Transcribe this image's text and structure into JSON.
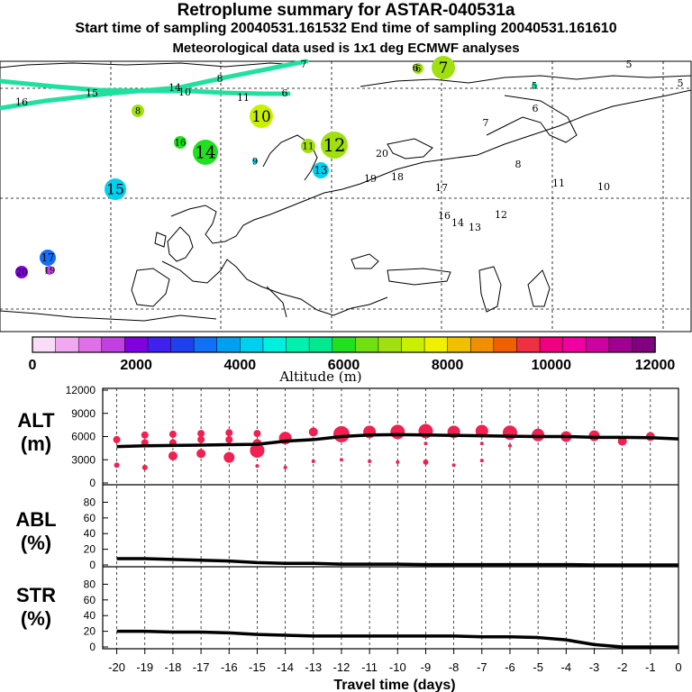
{
  "header": {
    "title": "Retroplume summary for ASTAR-040531a",
    "sampling_times": "Start time of sampling 20040531.161532     End time of sampling 20040531.161610",
    "met_data": "Meteorological data used is 1x1 deg ECMWF analyses"
  },
  "colors": {
    "altitude_scale": [
      "#f8dcf8",
      "#f0a8f0",
      "#e070e8",
      "#c040e0",
      "#8000e0",
      "#4020f0",
      "#2040f0",
      "#1070f8",
      "#00a0f0",
      "#00d0f0",
      "#00f0e0",
      "#00f0b0",
      "#00e890",
      "#20e020",
      "#70e010",
      "#a0e010",
      "#c8f000",
      "#f0f000",
      "#f0c000",
      "#f09000",
      "#f06000",
      "#f03040",
      "#f00080",
      "#f000a0",
      "#d000a0",
      "#a00090",
      "#800080"
    ],
    "track": "#20e0a0",
    "marker": "#f02050"
  },
  "map": {
    "colorbar_labels": [
      "0",
      "2000",
      "4000",
      "6000",
      "8000",
      "10000",
      "12000"
    ],
    "colorbar_title": "Altitude (m)",
    "plume_labels": [
      {
        "day": "16",
        "color": "#20e020"
      },
      {
        "day": "14",
        "color": "#20e020"
      },
      {
        "day": "15",
        "color": "#00d0f0"
      },
      {
        "day": "13",
        "color": "#00d0f0"
      },
      {
        "day": "12",
        "color": "#a0e010"
      },
      {
        "day": "11",
        "color": "#a0e010"
      },
      {
        "day": "10",
        "color": "#c8f000"
      },
      {
        "day": "9",
        "color": "#00d0f0"
      },
      {
        "day": "8",
        "color": "#a0e010"
      },
      {
        "day": "7",
        "color": "#a0e010"
      },
      {
        "day": "6",
        "color": "#a0e010"
      },
      {
        "day": "5",
        "color": "#00e890"
      },
      {
        "day": "17",
        "color": "#1070f8"
      },
      {
        "day": "20",
        "color": "#8000e0"
      },
      {
        "day": "19",
        "color": "#c040e0"
      }
    ]
  },
  "chart_data": [
    {
      "type": "line",
      "panel": "ALT",
      "ylabel": "ALT (m)",
      "ylim": [
        0,
        12000
      ],
      "yticks": [
        "0",
        "3000",
        "6000",
        "9000",
        "12000"
      ],
      "x": [
        -20,
        -19,
        -18,
        -17,
        -16,
        -15,
        -14,
        -13,
        -12,
        -11,
        -10,
        -9,
        -8,
        -7,
        -6,
        -5,
        -4,
        -3,
        -2,
        -1,
        0
      ],
      "values": [
        4700,
        4800,
        4850,
        4900,
        4950,
        5000,
        5400,
        5600,
        6000,
        6200,
        6250,
        6200,
        6150,
        6100,
        6050,
        6000,
        6000,
        5900,
        5900,
        5850,
        5700
      ],
      "clusters": [
        {
          "x": -20,
          "values": [
            5600,
            2300
          ],
          "sizes": [
            4,
            3
          ]
        },
        {
          "x": -19,
          "values": [
            6200,
            5200,
            2000
          ],
          "sizes": [
            4,
            4,
            3
          ]
        },
        {
          "x": -18,
          "values": [
            6300,
            5200,
            3500
          ],
          "sizes": [
            4,
            4,
            5
          ]
        },
        {
          "x": -17,
          "values": [
            6400,
            5600,
            3800
          ],
          "sizes": [
            4,
            4,
            5
          ]
        },
        {
          "x": -16,
          "values": [
            6500,
            5600,
            3300
          ],
          "sizes": [
            4,
            4,
            6
          ]
        },
        {
          "x": -15,
          "values": [
            6400,
            5100,
            4200,
            2200
          ],
          "sizes": [
            4,
            5,
            8,
            2
          ]
        },
        {
          "x": -14,
          "values": [
            5800,
            2000
          ],
          "sizes": [
            7,
            2
          ]
        },
        {
          "x": -13,
          "values": [
            6600,
            2800
          ],
          "sizes": [
            5,
            2
          ]
        },
        {
          "x": -12,
          "values": [
            6300,
            3000
          ],
          "sizes": [
            9,
            2
          ]
        },
        {
          "x": -11,
          "values": [
            6600,
            2800
          ],
          "sizes": [
            7,
            2
          ]
        },
        {
          "x": -10,
          "values": [
            6600,
            2700
          ],
          "sizes": [
            8,
            2
          ]
        },
        {
          "x": -9,
          "values": [
            6700,
            5100,
            2700
          ],
          "sizes": [
            8,
            2,
            3
          ]
        },
        {
          "x": -8,
          "values": [
            6600,
            2300
          ],
          "sizes": [
            7,
            2
          ]
        },
        {
          "x": -7,
          "values": [
            6700,
            5100,
            2900
          ],
          "sizes": [
            7,
            2,
            2
          ]
        },
        {
          "x": -6,
          "values": [
            6500,
            4800
          ],
          "sizes": [
            8,
            2
          ]
        },
        {
          "x": -5,
          "values": [
            6200
          ],
          "sizes": [
            7
          ]
        },
        {
          "x": -4,
          "values": [
            6000
          ],
          "sizes": [
            6
          ]
        },
        {
          "x": -3,
          "values": [
            6100
          ],
          "sizes": [
            6
          ]
        },
        {
          "x": -2,
          "values": [
            5400
          ],
          "sizes": [
            5
          ]
        },
        {
          "x": -1,
          "values": [
            6000
          ],
          "sizes": [
            5
          ]
        }
      ]
    },
    {
      "type": "line",
      "panel": "ABL",
      "ylabel": "ABL (%)",
      "ylim": [
        0,
        100
      ],
      "yticks": [
        "0",
        "20",
        "40",
        "60",
        "80"
      ],
      "x": [
        -20,
        -19,
        -18,
        -17,
        -16,
        -15,
        -14,
        -13,
        -12,
        -11,
        -10,
        -9,
        -8,
        -7,
        -6,
        -5,
        -4,
        -3,
        -2,
        -1,
        0
      ],
      "values": [
        8,
        8,
        7,
        6,
        5,
        3,
        2,
        2,
        1,
        1,
        1,
        0.5,
        0.5,
        0.5,
        0.5,
        0.5,
        0.5,
        0,
        0,
        0,
        0
      ]
    },
    {
      "type": "line",
      "panel": "STR",
      "ylabel": "STR (%)",
      "ylim": [
        0,
        100
      ],
      "yticks": [
        "0",
        "20",
        "40",
        "60",
        "80"
      ],
      "x": [
        -20,
        -19,
        -18,
        -17,
        -16,
        -15,
        -14,
        -13,
        -12,
        -11,
        -10,
        -9,
        -8,
        -7,
        -6,
        -5,
        -4,
        -3,
        -2,
        -1,
        0
      ],
      "values": [
        20,
        20,
        19,
        19,
        18,
        16,
        15,
        14,
        14,
        14,
        14,
        14,
        14,
        13,
        13,
        12,
        9,
        3,
        0,
        0,
        0
      ],
      "xlabel": "Travel time (days)",
      "xticks": [
        "-20",
        "-19",
        "-18",
        "-17",
        "-16",
        "-15",
        "-14",
        "-13",
        "-12",
        "-11",
        "-10",
        "-9",
        "-8",
        "-7",
        "-6",
        "-5",
        "-4",
        "-3",
        "-2",
        "-1",
        "0"
      ]
    }
  ]
}
